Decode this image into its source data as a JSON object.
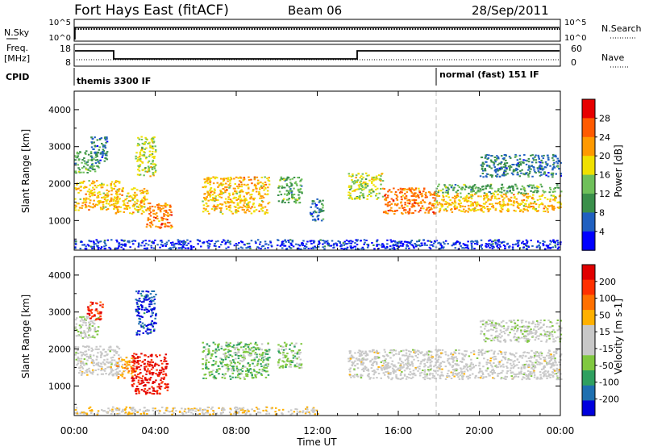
{
  "header": {
    "radar": "Fort Hays East (fitACF)",
    "beam": "Beam 06",
    "date": "28/Sep/2011"
  },
  "panels": {
    "nsky": {
      "label": "N.Sky",
      "ticks": [
        "10^5",
        "10^0"
      ],
      "right_label": "N.Search",
      "right_ticks": [
        "10^5",
        "10^0"
      ]
    },
    "freq": {
      "label_line1": "Freq.",
      "label_line2": "[MHz]",
      "ticks": [
        "18",
        "8"
      ],
      "right_label": "Nave",
      "right_ticks": [
        "60",
        "0"
      ]
    },
    "cpid": {
      "label": "CPID",
      "modes": [
        "themis 3300 IF",
        "normal (fast) 151 IF"
      ]
    }
  },
  "x_axis": {
    "label": "Time UT",
    "ticks": [
      "00:00",
      "04:00",
      "08:00",
      "12:00",
      "16:00",
      "20:00",
      "00:00"
    ]
  },
  "colors": {
    "power": [
      "#0000ff",
      "#2060c0",
      "#3a8f4a",
      "#6fc05a",
      "#f0e000",
      "#ff9900",
      "#ff5a00",
      "#e60000"
    ],
    "velocity": [
      "#0000dd",
      "#1e6fb0",
      "#2fa060",
      "#80c840",
      "#c8c8c8",
      "#c8c8c8",
      "#ffb000",
      "#ff7000",
      "#ff3000",
      "#e00000"
    ]
  },
  "chart_data": [
    {
      "type": "heatmap",
      "name": "power",
      "xlabel": "Time UT",
      "ylabel": "Slant Range [km]",
      "xlim": [
        0,
        24
      ],
      "ylim": [
        200,
        4500
      ],
      "yticks": [
        "4000",
        "3000",
        "2000",
        "1000"
      ],
      "colorbar": {
        "label": "Power [dB]",
        "ticks": [
          "28",
          "24",
          "20",
          "16",
          "12",
          "8",
          "4"
        ],
        "range": [
          0,
          32
        ]
      },
      "echo_regions": [
        {
          "t0": 0.0,
          "t1": 2.2,
          "r0": 1300,
          "r1": 2100,
          "value": 20
        },
        {
          "t0": 0.0,
          "t1": 1.2,
          "r0": 2300,
          "r1": 2900,
          "value": 12
        },
        {
          "t0": 0.8,
          "t1": 1.6,
          "r0": 2600,
          "r1": 3300,
          "value": 8
        },
        {
          "t0": 2.0,
          "t1": 3.6,
          "r0": 1200,
          "r1": 1900,
          "value": 20
        },
        {
          "t0": 3.0,
          "t1": 4.0,
          "r0": 2200,
          "r1": 3300,
          "value": 16
        },
        {
          "t0": 3.5,
          "t1": 4.8,
          "r0": 800,
          "r1": 1500,
          "value": 24
        },
        {
          "t0": 6.3,
          "t1": 9.6,
          "r0": 1200,
          "r1": 2200,
          "value": 20
        },
        {
          "t0": 10.0,
          "t1": 11.2,
          "r0": 1500,
          "r1": 2200,
          "value": 12
        },
        {
          "t0": 11.6,
          "t1": 12.3,
          "r0": 1000,
          "r1": 1600,
          "value": 8
        },
        {
          "t0": 13.5,
          "t1": 15.2,
          "r0": 1600,
          "r1": 2300,
          "value": 16
        },
        {
          "t0": 15.2,
          "t1": 17.8,
          "r0": 1200,
          "r1": 1900,
          "value": 24
        },
        {
          "t0": 17.8,
          "t1": 24.0,
          "r0": 1250,
          "r1": 1750,
          "value": 20
        },
        {
          "t0": 17.8,
          "t1": 24.0,
          "r0": 1750,
          "r1": 2000,
          "value": 12
        },
        {
          "t0": 20.0,
          "t1": 24.0,
          "r0": 2200,
          "r1": 2800,
          "value": 8
        },
        {
          "t0": 0.0,
          "t1": 24.0,
          "r0": 250,
          "r1": 500,
          "value": 4
        }
      ]
    },
    {
      "type": "heatmap",
      "name": "velocity",
      "xlabel": "Time UT",
      "ylabel": "Slant Range [km]",
      "xlim": [
        0,
        24
      ],
      "ylim": [
        200,
        4500
      ],
      "yticks": [
        "4000",
        "3000",
        "2000",
        "1000"
      ],
      "colorbar": {
        "label": "Velocity [m s-1]",
        "ticks": [
          "200",
          "100",
          "50",
          "15",
          "-15",
          "-50",
          "-100",
          "-200"
        ],
        "range": [
          -250,
          250
        ]
      },
      "echo_regions": [
        {
          "t0": 0.0,
          "t1": 2.2,
          "r0": 1300,
          "r1": 2100,
          "value": 0
        },
        {
          "t0": 0.0,
          "t1": 1.2,
          "r0": 2300,
          "r1": 2900,
          "value": -30
        },
        {
          "t0": 0.6,
          "t1": 1.4,
          "r0": 2800,
          "r1": 3300,
          "value": 180
        },
        {
          "t0": 2.0,
          "t1": 3.0,
          "r0": 1200,
          "r1": 1800,
          "value": 70
        },
        {
          "t0": 2.8,
          "t1": 4.6,
          "r0": 800,
          "r1": 1900,
          "value": 220
        },
        {
          "t0": 3.0,
          "t1": 4.0,
          "r0": 2400,
          "r1": 3600,
          "value": -200
        },
        {
          "t0": 6.3,
          "t1": 9.6,
          "r0": 1200,
          "r1": 2200,
          "value": -80
        },
        {
          "t0": 10.0,
          "t1": 11.2,
          "r0": 1500,
          "r1": 2200,
          "value": -60
        },
        {
          "t0": 13.5,
          "t1": 24.0,
          "r0": 1200,
          "r1": 2000,
          "value": 0
        },
        {
          "t0": 20.0,
          "t1": 24.0,
          "r0": 2200,
          "r1": 2800,
          "value": -20
        },
        {
          "t0": 0.0,
          "t1": 12.0,
          "r0": 250,
          "r1": 450,
          "value": 40
        }
      ]
    }
  ]
}
